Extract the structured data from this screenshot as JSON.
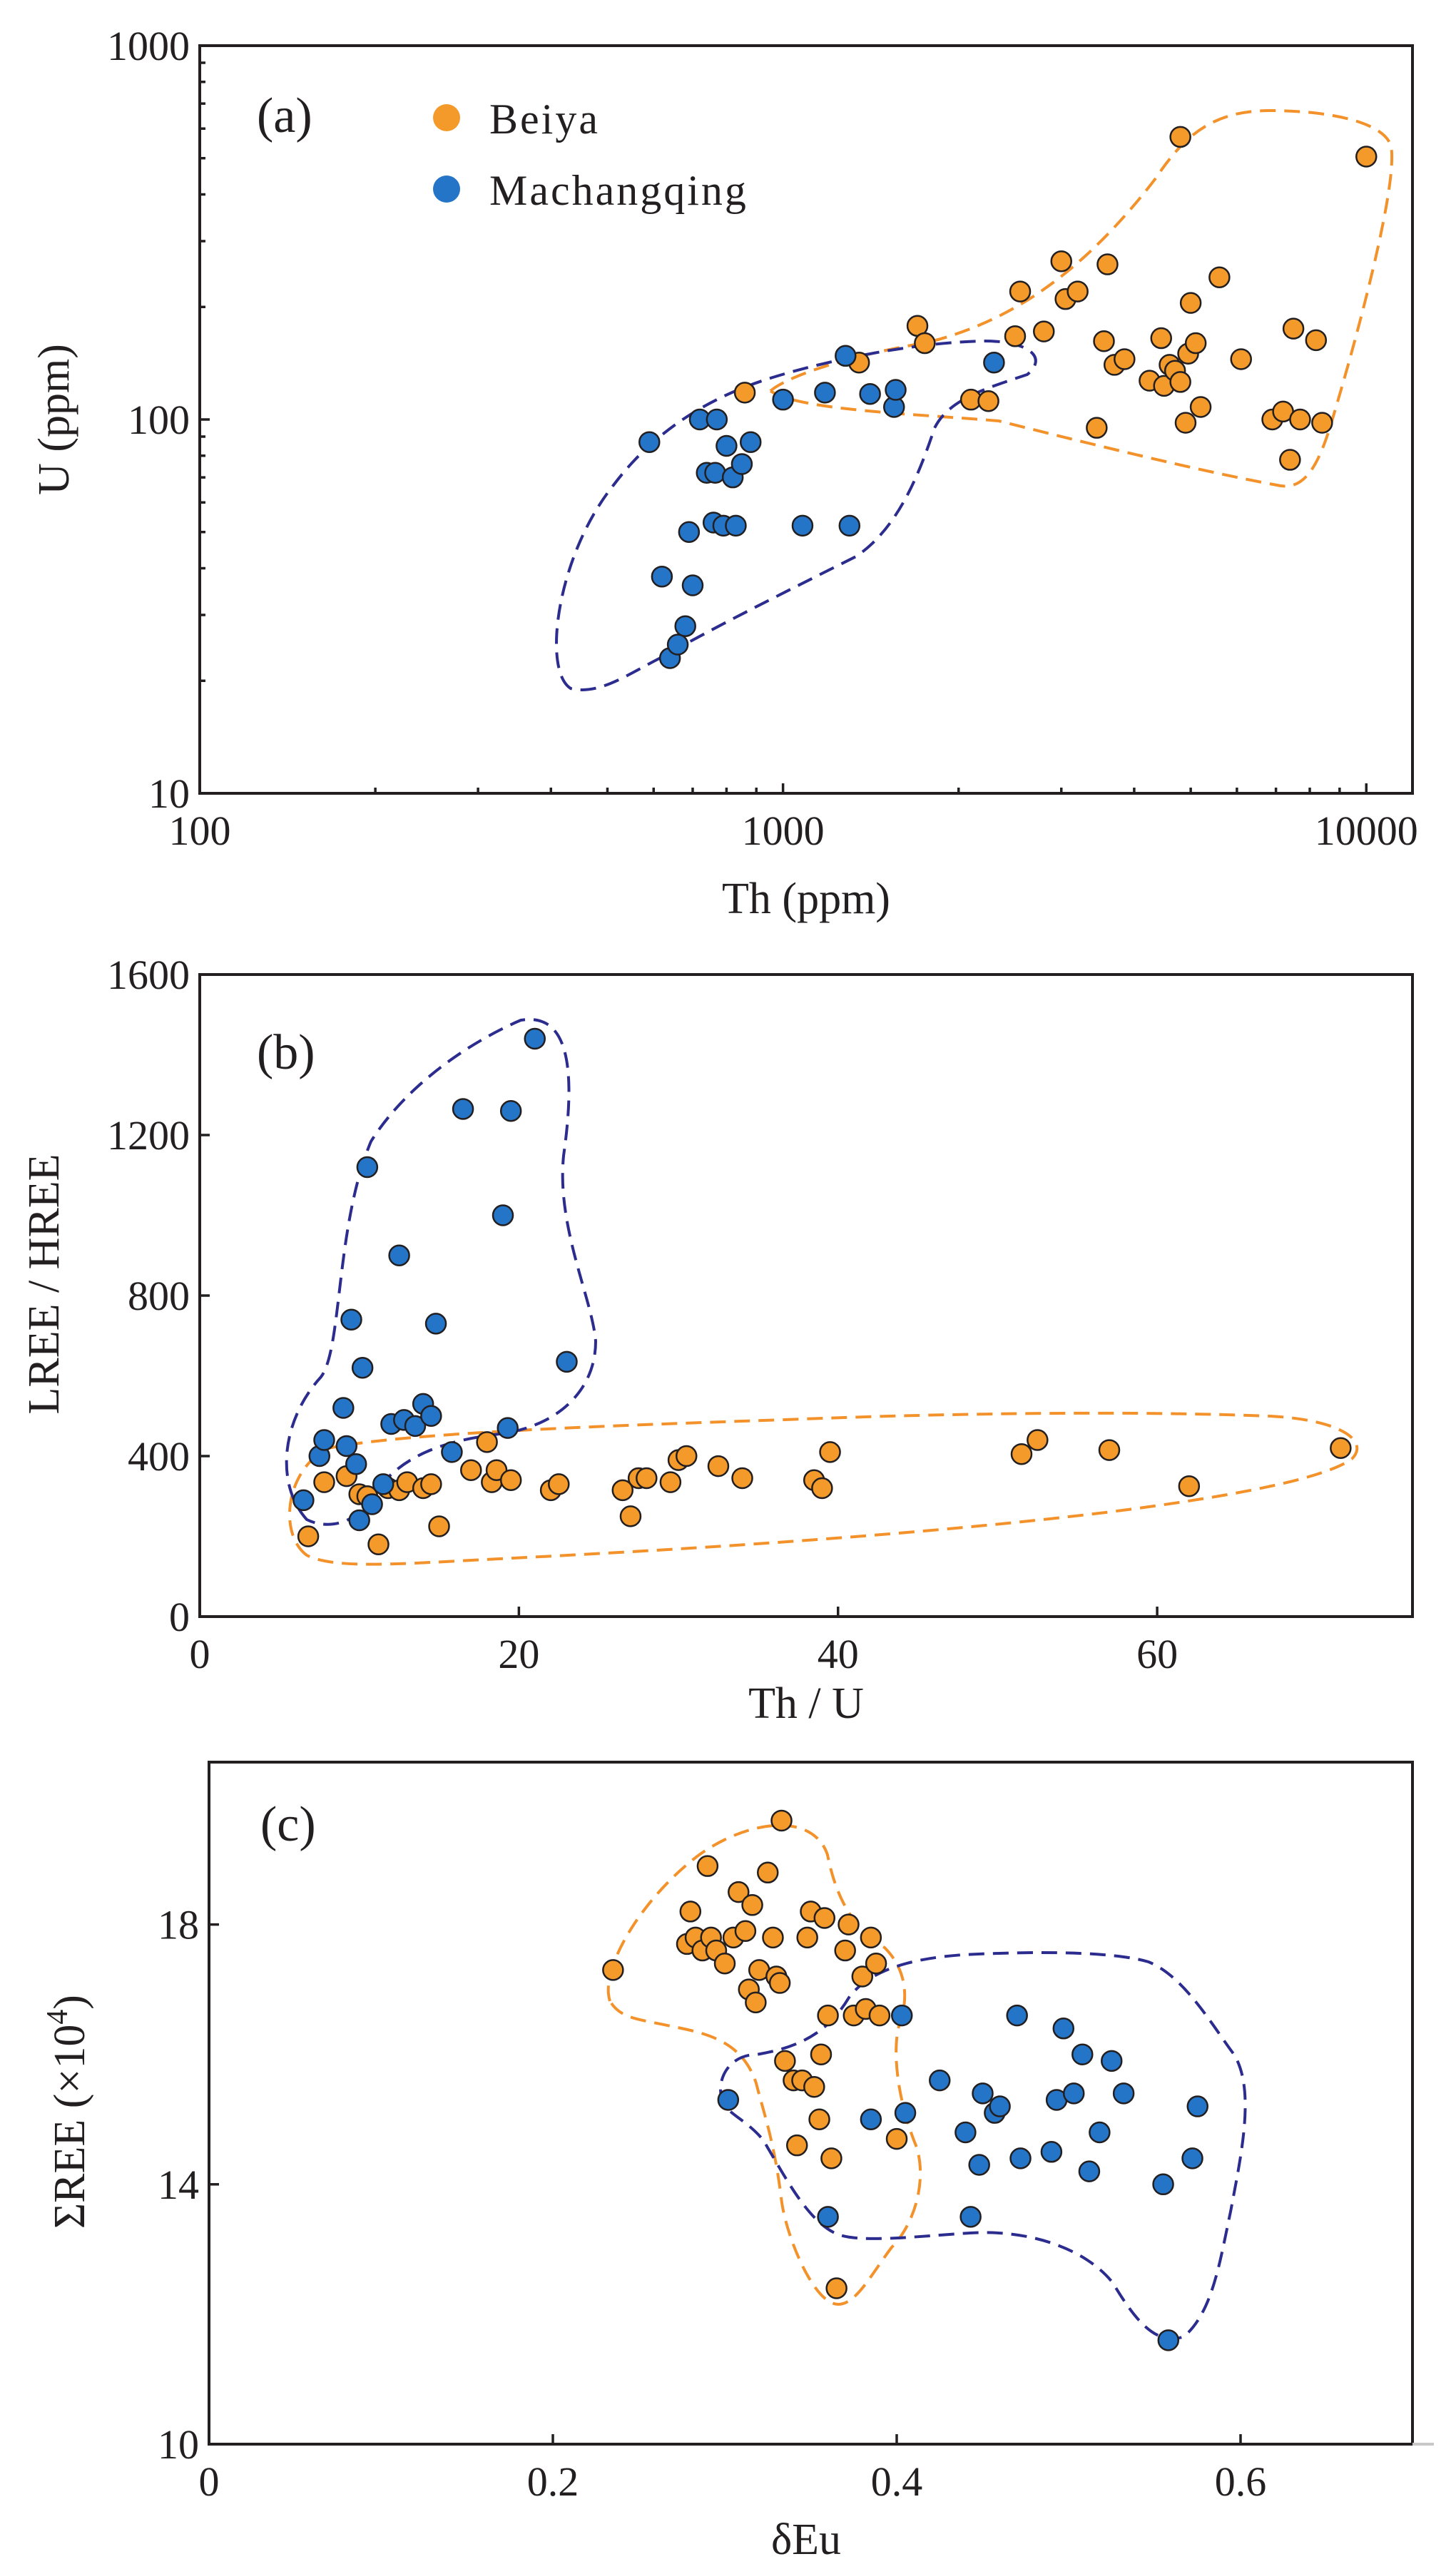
{
  "colors": {
    "beiya": "#F39A2A",
    "machangqing": "#2475C7",
    "env_beiya": "#F3922A",
    "env_mach": "#2B2C8E",
    "axis": "#231f20"
  },
  "legend": {
    "series1": "Beiya",
    "series2": "Machangqing"
  },
  "chart_data": [
    {
      "type": "scatter",
      "panel_label": "(a)",
      "xscale": "log",
      "yscale": "log",
      "xlabel": "Th (ppm)",
      "ylabel": "U (ppm)",
      "xlim": [
        100,
        12000
      ],
      "ylim": [
        10,
        1000
      ],
      "xticks": [
        100,
        1000,
        10000
      ],
      "xtick_labels": [
        "100",
        "1000",
        "10000"
      ],
      "yticks": [
        10,
        100,
        1000
      ],
      "ytick_labels": [
        "10",
        "100",
        "1000"
      ],
      "legend_position": "top-left",
      "series": [
        {
          "name": "Beiya",
          "points": [
            [
              860,
              118
            ],
            [
              1350,
              142
            ],
            [
              1700,
              178
            ],
            [
              1750,
              160
            ],
            [
              2100,
              113
            ],
            [
              2250,
              112
            ],
            [
              2500,
              167
            ],
            [
              2550,
              220
            ],
            [
              2800,
              172
            ],
            [
              3000,
              265
            ],
            [
              3050,
              210
            ],
            [
              3200,
              220
            ],
            [
              3450,
              95
            ],
            [
              3550,
              162
            ],
            [
              3600,
              260
            ],
            [
              3700,
              140
            ],
            [
              3850,
              145
            ],
            [
              4250,
              127
            ],
            [
              4450,
              165
            ],
            [
              4500,
              123
            ],
            [
              4600,
              140
            ],
            [
              4700,
              135
            ],
            [
              4800,
              126
            ],
            [
              4900,
              98
            ],
            [
              4950,
              150
            ],
            [
              5000,
              205
            ],
            [
              5100,
              160
            ],
            [
              5200,
              108
            ],
            [
              5600,
              240
            ],
            [
              6100,
              145
            ],
            [
              6900,
              100
            ],
            [
              7200,
              105
            ],
            [
              7400,
              78
            ],
            [
              7500,
              175
            ],
            [
              7700,
              100
            ],
            [
              8200,
              163
            ],
            [
              8400,
              98
            ],
            [
              4800,
              570
            ],
            [
              10000,
              505
            ]
          ]
        },
        {
          "name": "Machangqing",
          "points": [
            [
              590,
              87
            ],
            [
              620,
              38
            ],
            [
              640,
              23
            ],
            [
              660,
              25
            ],
            [
              680,
              28
            ],
            [
              690,
              50
            ],
            [
              700,
              36
            ],
            [
              720,
              100
            ],
            [
              740,
              72
            ],
            [
              760,
              53
            ],
            [
              765,
              72
            ],
            [
              770,
              100
            ],
            [
              790,
              52
            ],
            [
              800,
              85
            ],
            [
              820,
              70
            ],
            [
              830,
              52
            ],
            [
              850,
              76
            ],
            [
              880,
              87
            ],
            [
              1000,
              113
            ],
            [
              1080,
              52
            ],
            [
              1180,
              118
            ],
            [
              1280,
              148
            ],
            [
              1300,
              52
            ],
            [
              1410,
              117
            ],
            [
              1550,
              108
            ],
            [
              1560,
              120
            ],
            [
              2300,
              142
            ]
          ]
        }
      ],
      "envelopes": [
        {
          "name": "Beiya"
        },
        {
          "name": "Machangqing"
        }
      ]
    },
    {
      "type": "scatter",
      "panel_label": "(b)",
      "xlabel": "Th / U",
      "ylabel": "LREE / HREE",
      "xlim": [
        0,
        76
      ],
      "ylim": [
        0,
        1600
      ],
      "xticks": [
        0,
        20,
        40,
        60
      ],
      "xtick_labels": [
        "0",
        "20",
        "40",
        "60"
      ],
      "yticks": [
        0,
        400,
        800,
        1200,
        1600
      ],
      "ytick_labels": [
        "0",
        "400",
        "800",
        "1200",
        "1600"
      ],
      "series": [
        {
          "name": "Beiya",
          "points": [
            [
              6.8,
              200
            ],
            [
              7.8,
              335
            ],
            [
              9.2,
              350
            ],
            [
              10.0,
              305
            ],
            [
              10.5,
              300
            ],
            [
              11.2,
              180
            ],
            [
              11.8,
              320
            ],
            [
              12.5,
              315
            ],
            [
              13.0,
              335
            ],
            [
              14.0,
              320
            ],
            [
              14.5,
              330
            ],
            [
              15.0,
              225
            ],
            [
              17.0,
              365
            ],
            [
              18.0,
              435
            ],
            [
              18.3,
              335
            ],
            [
              18.6,
              365
            ],
            [
              19.5,
              340
            ],
            [
              22.0,
              315
            ],
            [
              22.5,
              330
            ],
            [
              26.5,
              315
            ],
            [
              27.0,
              250
            ],
            [
              27.5,
              345
            ],
            [
              28.0,
              345
            ],
            [
              29.5,
              335
            ],
            [
              30.0,
              390
            ],
            [
              30.5,
              400
            ],
            [
              32.5,
              375
            ],
            [
              34.0,
              345
            ],
            [
              38.5,
              340
            ],
            [
              39.0,
              320
            ],
            [
              39.5,
              410
            ],
            [
              51.5,
              405
            ],
            [
              52.5,
              440
            ],
            [
              57.0,
              415
            ],
            [
              62.0,
              325
            ],
            [
              71.5,
              420
            ]
          ]
        },
        {
          "name": "Machangqing",
          "points": [
            [
              6.5,
              290
            ],
            [
              7.5,
              400
            ],
            [
              7.8,
              440
            ],
            [
              9.0,
              520
            ],
            [
              9.2,
              425
            ],
            [
              9.5,
              740
            ],
            [
              9.8,
              380
            ],
            [
              10.0,
              240
            ],
            [
              10.2,
              620
            ],
            [
              10.5,
              1120
            ],
            [
              10.8,
              280
            ],
            [
              11.5,
              330
            ],
            [
              12.0,
              480
            ],
            [
              12.5,
              900
            ],
            [
              12.8,
              490
            ],
            [
              13.5,
              475
            ],
            [
              14.0,
              530
            ],
            [
              14.5,
              500
            ],
            [
              14.8,
              730
            ],
            [
              15.8,
              410
            ],
            [
              16.5,
              1265
            ],
            [
              19.0,
              1000
            ],
            [
              19.3,
              470
            ],
            [
              19.5,
              1260
            ],
            [
              21.0,
              1440
            ],
            [
              23.0,
              635
            ]
          ]
        }
      ],
      "envelopes": [
        {
          "name": "Beiya"
        },
        {
          "name": "Machangqing"
        }
      ]
    },
    {
      "type": "scatter",
      "panel_label": "(c)",
      "xlabel": "δEu",
      "ylabel": "ΣREE (×10⁴)",
      "ylabel_main": "ΣREE (×10",
      "ylabel_sup": "4",
      "ylabel_end": ")",
      "xlim": [
        0,
        0.7
      ],
      "ylim": [
        10,
        20.5
      ],
      "xticks": [
        0,
        0.2,
        0.4,
        0.6
      ],
      "xtick_labels": [
        "0",
        "0.2",
        "0.4",
        "0.6"
      ],
      "yticks": [
        10,
        14,
        18
      ],
      "ytick_labels": [
        "10",
        "14",
        "18"
      ],
      "series": [
        {
          "name": "Beiya",
          "points": [
            [
              0.235,
              17.3
            ],
            [
              0.278,
              17.7
            ],
            [
              0.28,
              18.2
            ],
            [
              0.283,
              17.8
            ],
            [
              0.287,
              17.6
            ],
            [
              0.29,
              18.9
            ],
            [
              0.292,
              17.8
            ],
            [
              0.295,
              17.6
            ],
            [
              0.3,
              17.4
            ],
            [
              0.305,
              17.8
            ],
            [
              0.308,
              18.5
            ],
            [
              0.312,
              17.9
            ],
            [
              0.314,
              17.0
            ],
            [
              0.316,
              18.3
            ],
            [
              0.318,
              16.8
            ],
            [
              0.32,
              17.3
            ],
            [
              0.325,
              18.8
            ],
            [
              0.328,
              17.8
            ],
            [
              0.33,
              17.2
            ],
            [
              0.332,
              17.1
            ],
            [
              0.333,
              19.6
            ],
            [
              0.335,
              15.9
            ],
            [
              0.34,
              15.6
            ],
            [
              0.342,
              14.6
            ],
            [
              0.345,
              15.6
            ],
            [
              0.348,
              17.8
            ],
            [
              0.35,
              18.2
            ],
            [
              0.352,
              15.5
            ],
            [
              0.355,
              15.0
            ],
            [
              0.356,
              16.0
            ],
            [
              0.358,
              18.1
            ],
            [
              0.36,
              16.6
            ],
            [
              0.362,
              14.4
            ],
            [
              0.365,
              12.4
            ],
            [
              0.37,
              17.6
            ],
            [
              0.372,
              18.0
            ],
            [
              0.375,
              16.6
            ],
            [
              0.38,
              17.2
            ],
            [
              0.382,
              16.7
            ],
            [
              0.385,
              17.8
            ],
            [
              0.388,
              17.4
            ],
            [
              0.39,
              16.6
            ],
            [
              0.4,
              14.7
            ]
          ]
        },
        {
          "name": "Machangqing",
          "points": [
            [
              0.302,
              15.3
            ],
            [
              0.36,
              13.5
            ],
            [
              0.385,
              15.0
            ],
            [
              0.403,
              16.6
            ],
            [
              0.405,
              15.1
            ],
            [
              0.425,
              15.6
            ],
            [
              0.44,
              14.8
            ],
            [
              0.443,
              13.5
            ],
            [
              0.448,
              14.3
            ],
            [
              0.45,
              15.4
            ],
            [
              0.457,
              15.1
            ],
            [
              0.46,
              15.2
            ],
            [
              0.47,
              16.6
            ],
            [
              0.472,
              14.4
            ],
            [
              0.49,
              14.5
            ],
            [
              0.493,
              15.3
            ],
            [
              0.497,
              16.4
            ],
            [
              0.503,
              15.4
            ],
            [
              0.508,
              16.0
            ],
            [
              0.512,
              14.2
            ],
            [
              0.518,
              14.8
            ],
            [
              0.525,
              15.9
            ],
            [
              0.532,
              15.4
            ],
            [
              0.555,
              14.0
            ],
            [
              0.558,
              11.6
            ],
            [
              0.572,
              14.4
            ],
            [
              0.575,
              15.2
            ]
          ]
        }
      ],
      "envelopes": [
        {
          "name": "Beiya"
        },
        {
          "name": "Machangqing"
        }
      ]
    }
  ]
}
